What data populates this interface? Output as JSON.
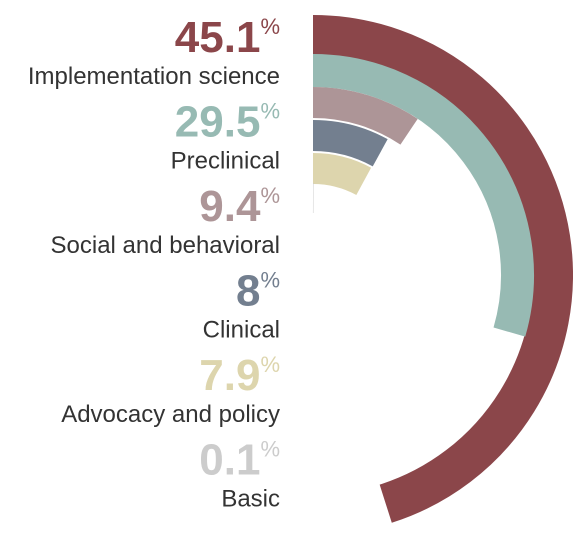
{
  "chart_data": {
    "type": "radial_bar",
    "categories": [
      "Implementation science",
      "Preclinical",
      "Social and behavioral",
      "Clinical",
      "Advocacy and policy",
      "Basic"
    ],
    "values": [
      45.1,
      29.5,
      9.4,
      8,
      7.9,
      0.1
    ],
    "value_labels": [
      "45.1%",
      "29.5%",
      "9.4%",
      "8%",
      "7.9%",
      "0.1%"
    ],
    "colors": [
      "#8b464a",
      "#97bab3",
      "#ad9597",
      "#737f8f",
      "#ddd5ad",
      "#cccccc"
    ]
  }
}
